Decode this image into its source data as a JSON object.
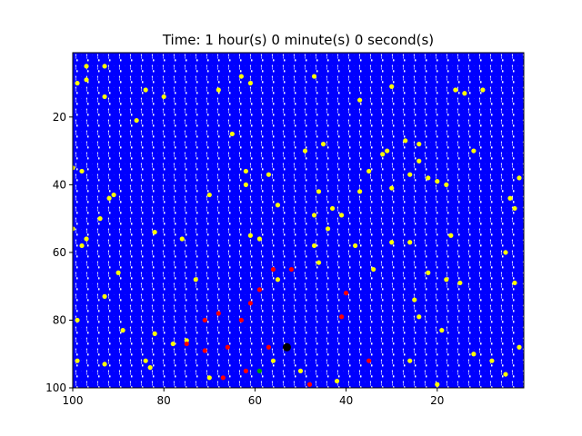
{
  "chart_data": {
    "type": "scatter",
    "title": "Time: 1 hour(s) 0 minute(s) 0 second(s)",
    "xlim": [
      100,
      1
    ],
    "ylim": [
      100,
      1
    ],
    "x_ticks": [
      100,
      80,
      60,
      40,
      20
    ],
    "y_ticks": [
      20,
      40,
      60,
      80,
      100
    ],
    "x_inverted": true,
    "y_inverted": true,
    "grid": false,
    "legend": "none",
    "colors": {
      "background": "#0000ff",
      "yellow": "#ffff00",
      "red": "#ff0000",
      "green": "#00a000",
      "black": "#000000"
    },
    "series": [
      {
        "color": "yellow",
        "points": [
          [
            97,
            5
          ],
          [
            93,
            5
          ],
          [
            99,
            10
          ],
          [
            97,
            9
          ],
          [
            84,
            12
          ],
          [
            80,
            14
          ],
          [
            68,
            12
          ],
          [
            63,
            8
          ],
          [
            61,
            10
          ],
          [
            47,
            8
          ],
          [
            37,
            15
          ],
          [
            30,
            11
          ],
          [
            14,
            13
          ],
          [
            10,
            12
          ],
          [
            16,
            12
          ],
          [
            86,
            21
          ],
          [
            93,
            14
          ],
          [
            65,
            25
          ],
          [
            49,
            30
          ],
          [
            45,
            28
          ],
          [
            31,
            30
          ],
          [
            27,
            27
          ],
          [
            24,
            28
          ],
          [
            24,
            33
          ],
          [
            22,
            38
          ],
          [
            26,
            37
          ],
          [
            32,
            31
          ],
          [
            35,
            36
          ],
          [
            12,
            30
          ],
          [
            2,
            38
          ],
          [
            100,
            35
          ],
          [
            98,
            36
          ],
          [
            92,
            44
          ],
          [
            91,
            43
          ],
          [
            62,
            36
          ],
          [
            57,
            37
          ],
          [
            55,
            46
          ],
          [
            62,
            40
          ],
          [
            70,
            43
          ],
          [
            46,
            42
          ],
          [
            43,
            47
          ],
          [
            37,
            42
          ],
          [
            30,
            41
          ],
          [
            20,
            39
          ],
          [
            18,
            40
          ],
          [
            4,
            44
          ],
          [
            3,
            47
          ],
          [
            94,
            50
          ],
          [
            100,
            53
          ],
          [
            97,
            56
          ],
          [
            98,
            58
          ],
          [
            82,
            54
          ],
          [
            76,
            56
          ],
          [
            61,
            55
          ],
          [
            59,
            56
          ],
          [
            47,
            49
          ],
          [
            41,
            49
          ],
          [
            44,
            53
          ],
          [
            47,
            58
          ],
          [
            38,
            58
          ],
          [
            30,
            57
          ],
          [
            26,
            57
          ],
          [
            5,
            60
          ],
          [
            3,
            69
          ],
          [
            17,
            55
          ],
          [
            93,
            73
          ],
          [
            90,
            66
          ],
          [
            73,
            68
          ],
          [
            55,
            68
          ],
          [
            46,
            63
          ],
          [
            34,
            65
          ],
          [
            25,
            74
          ],
          [
            22,
            66
          ],
          [
            18,
            68
          ],
          [
            15,
            69
          ],
          [
            99,
            80
          ],
          [
            89,
            83
          ],
          [
            82,
            84
          ],
          [
            78,
            87
          ],
          [
            75,
            86
          ],
          [
            24,
            79
          ],
          [
            19,
            83
          ],
          [
            2,
            88
          ],
          [
            99,
            92
          ],
          [
            93,
            93
          ],
          [
            84,
            92
          ],
          [
            83,
            94
          ],
          [
            70,
            97
          ],
          [
            56,
            92
          ],
          [
            50,
            95
          ],
          [
            42,
            98
          ],
          [
            26,
            92
          ],
          [
            12,
            90
          ],
          [
            8,
            92
          ],
          [
            5,
            96
          ],
          [
            20,
            99
          ]
        ]
      },
      {
        "color": "red",
        "points": [
          [
            56,
            65
          ],
          [
            52,
            65
          ],
          [
            59,
            71
          ],
          [
            61,
            75
          ],
          [
            40,
            72
          ],
          [
            41,
            79
          ],
          [
            63,
            80
          ],
          [
            68,
            78
          ],
          [
            71,
            80
          ],
          [
            75,
            87
          ],
          [
            71,
            89
          ],
          [
            66,
            88
          ],
          [
            57,
            88
          ],
          [
            62,
            95
          ],
          [
            67,
            97
          ],
          [
            48,
            99
          ],
          [
            35,
            92
          ]
        ]
      },
      {
        "color": "green",
        "points": [
          [
            59,
            95
          ]
        ]
      },
      {
        "color": "black",
        "points": [
          [
            53,
            88
          ]
        ]
      }
    ]
  }
}
